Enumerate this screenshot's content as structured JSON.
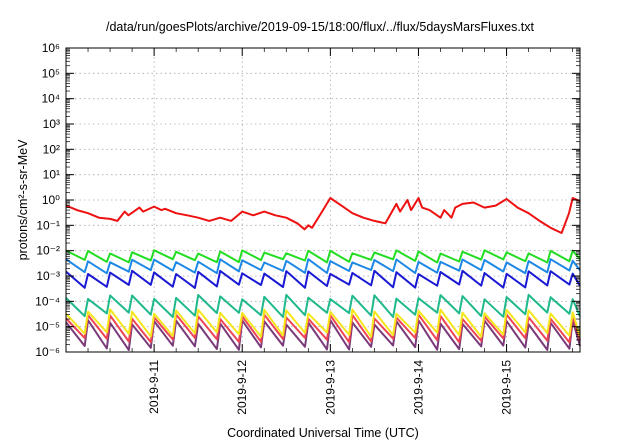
{
  "chart_data": {
    "type": "line",
    "title": "/data/run/goesPlots/archive/2019-09-15/18:00/flux/../flux/5daysMarsFluxes.txt",
    "xlabel": "Coordinated Universal Time (UTC)",
    "ylabel": "protons/cm²-s-sr-MeV",
    "x_ticks": [
      "2019-9-11",
      "2019-9-12",
      "2019-9-13",
      "2019-9-14",
      "2019-9-15"
    ],
    "y_ticks": [
      "10⁻⁶",
      "10⁻⁵",
      "10⁻⁴",
      "10⁻³",
      "10⁻²",
      "10⁻¹",
      "10⁰",
      "10¹",
      "10²",
      "10³",
      "10⁴",
      "10⁵",
      "10⁶"
    ],
    "y_scale": "log",
    "ylim": [
      1e-06,
      1000000.0
    ],
    "xlim": [
      "2019-09-10T00:00",
      "2019-09-15T20:00"
    ],
    "grid": true,
    "legend": "none",
    "series": [
      {
        "color": "#ee1111",
        "width": 2,
        "x": [
          "2019-09-10T00:00",
          "2019-09-10T03:00",
          "2019-09-10T06:00",
          "2019-09-10T09:00",
          "2019-09-10T12:00",
          "2019-09-10T14:00",
          "2019-09-10T16:00",
          "2019-09-10T17:00",
          "2019-09-10T20:00",
          "2019-09-10T21:00",
          "2019-09-11T00:00",
          "2019-09-11T02:00",
          "2019-09-11T03:00",
          "2019-09-11T06:00",
          "2019-09-11T09:00",
          "2019-09-11T12:00",
          "2019-09-11T15:00",
          "2019-09-11T18:00",
          "2019-09-11T21:00",
          "2019-09-12T00:00",
          "2019-09-12T03:00",
          "2019-09-12T06:00",
          "2019-09-12T09:00",
          "2019-09-12T12:00",
          "2019-09-12T15:00",
          "2019-09-12T17:00",
          "2019-09-12T18:00",
          "2019-09-12T19:00",
          "2019-09-12T22:00",
          "2019-09-13T00:00",
          "2019-09-13T03:00",
          "2019-09-13T06:00",
          "2019-09-13T09:00",
          "2019-09-13T12:00",
          "2019-09-13T15:00",
          "2019-09-13T18:00",
          "2019-09-13T19:00",
          "2019-09-13T21:00",
          "2019-09-13T22:00",
          "2019-09-14T00:00",
          "2019-09-14T01:00",
          "2019-09-14T03:00",
          "2019-09-14T06:00",
          "2019-09-14T07:00",
          "2019-09-14T09:00",
          "2019-09-14T10:00",
          "2019-09-14T12:00",
          "2019-09-14T15:00",
          "2019-09-14T18:00",
          "2019-09-14T21:00",
          "2019-09-15T00:00",
          "2019-09-15T03:00",
          "2019-09-15T06:00",
          "2019-09-15T09:00",
          "2019-09-15T12:00",
          "2019-09-15T15:00",
          "2019-09-15T17:00",
          "2019-09-15T18:00",
          "2019-09-15T20:00"
        ],
        "values": [
          0.6,
          0.4,
          0.3,
          0.2,
          0.18,
          0.15,
          0.35,
          0.25,
          0.5,
          0.35,
          0.55,
          0.4,
          0.45,
          0.3,
          0.25,
          0.2,
          0.15,
          0.2,
          0.15,
          0.35,
          0.25,
          0.35,
          0.25,
          0.2,
          0.12,
          0.07,
          0.1,
          0.08,
          0.4,
          1.2,
          0.6,
          0.3,
          0.2,
          0.15,
          0.12,
          0.7,
          0.35,
          1.0,
          0.4,
          1.2,
          0.5,
          0.4,
          0.2,
          0.4,
          0.2,
          0.5,
          0.7,
          0.8,
          0.5,
          0.6,
          1.1,
          0.5,
          0.3,
          0.15,
          0.08,
          0.05,
          0.3,
          1.2,
          0.9
        ]
      },
      {
        "color": "#22dd22",
        "width": 2,
        "pattern": {
          "period_h": 6,
          "low": 0.004,
          "high": 0.009,
          "variation": 0.15
        }
      },
      {
        "color": "#1e88e5",
        "width": 2,
        "pattern": {
          "period_h": 6,
          "low": 0.0015,
          "high": 0.004,
          "variation": 0.15
        }
      },
      {
        "color": "#1a1ad4",
        "width": 2,
        "pattern": {
          "period_h": 6,
          "low": 0.0004,
          "high": 0.0014,
          "variation": 0.15
        }
      },
      {
        "color": "#1fb98c",
        "width": 2,
        "pattern": {
          "period_h": 6,
          "low": 3e-05,
          "high": 0.00015,
          "variation": 0.2
        }
      },
      {
        "color": "#f5e61c",
        "width": 2,
        "pattern": {
          "period_h": 6,
          "low": 5e-06,
          "high": 4e-05,
          "variation": 0.2
        }
      },
      {
        "color": "#ee4455",
        "width": 2,
        "pattern": {
          "period_h": 6,
          "low": 3e-06,
          "high": 2.5e-05,
          "variation": 0.2
        }
      },
      {
        "color": "#7a3a7a",
        "width": 2,
        "pattern": {
          "period_h": 6,
          "low": 1.5e-06,
          "high": 1.5e-05,
          "variation": 0.2
        }
      }
    ]
  }
}
